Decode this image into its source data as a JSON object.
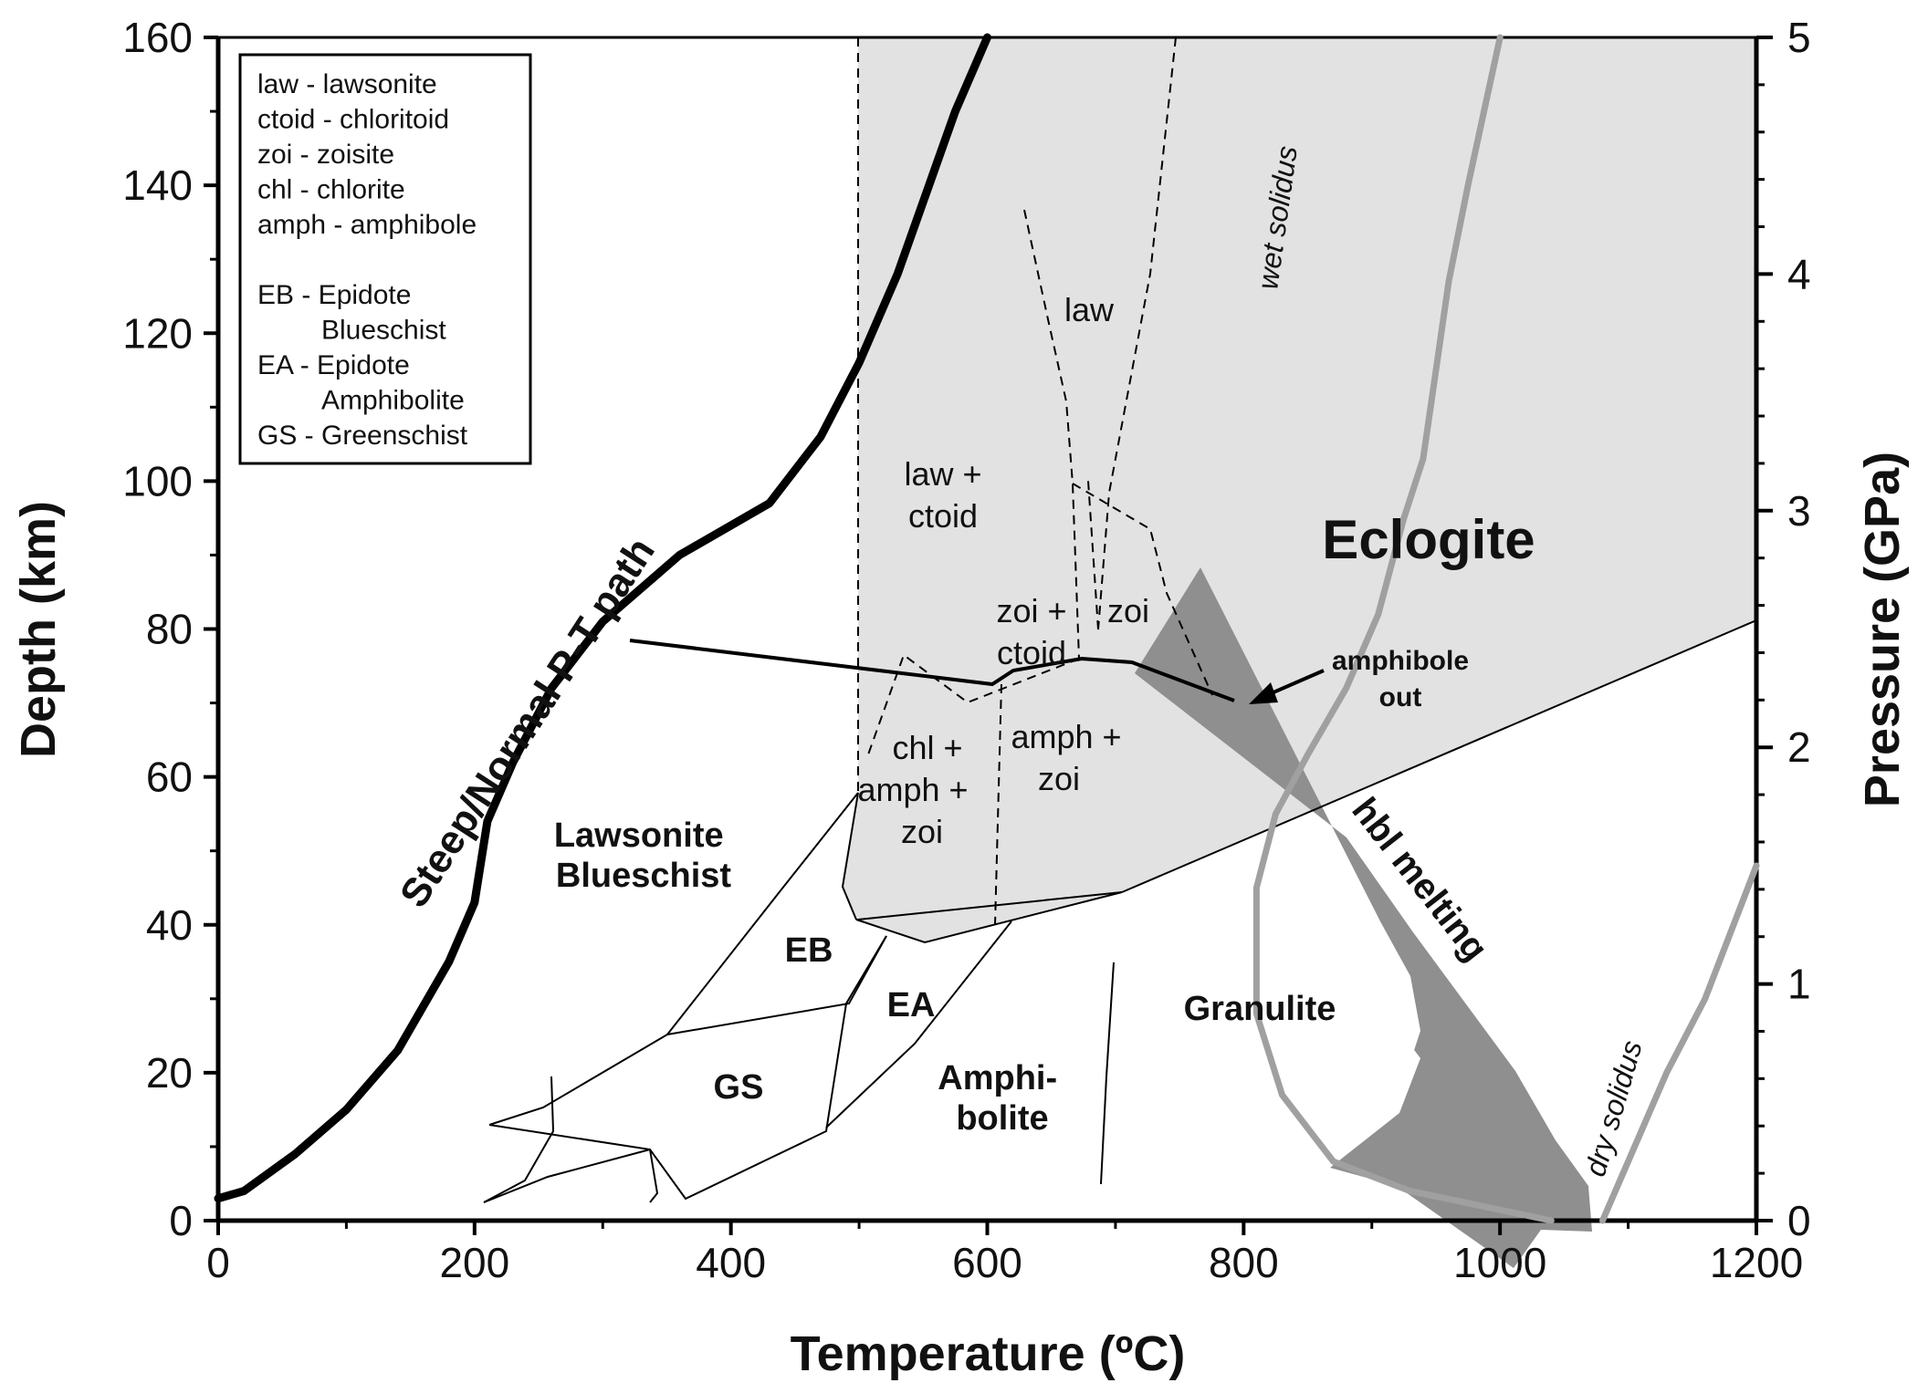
{
  "chart_data": {
    "type": "line",
    "xlabel": "Temperature (ºC)",
    "ylabel_left": "Depth (km)",
    "ylabel_right": "Pressure (GPa)",
    "xlim": [
      0,
      1200
    ],
    "ylim_depth": [
      0,
      160
    ],
    "ylim_pressure": [
      0,
      5
    ],
    "x_ticks": [
      "0",
      "200",
      "400",
      "600",
      "800",
      "1000",
      "1200"
    ],
    "depth_ticks": [
      "0",
      "20",
      "40",
      "60",
      "80",
      "100",
      "120",
      "140",
      "160"
    ],
    "pressure_ticks": [
      "0",
      "1",
      "2",
      "3",
      "4",
      "5"
    ],
    "legend": [
      "law - lawsonite",
      "ctoid - chloritoid",
      "zoi - zoisite",
      "chl - chlorite",
      "amph - amphibole",
      "",
      "EB - Epidote",
      "Blueschist",
      "EA - Epidote",
      "Amphibolite",
      "GS - Greenschist"
    ],
    "colors": {
      "eclogite_fill": "#e2e2e2",
      "hbl_band": "#8f8f8f",
      "solidus": "#a0a0a0",
      "pt_path": "#000000"
    },
    "series": [
      {
        "name": "Steep/Normal P-T path",
        "points": [
          [
            0,
            3
          ],
          [
            20,
            4
          ],
          [
            60,
            9
          ],
          [
            100,
            15
          ],
          [
            140,
            23
          ],
          [
            180,
            35
          ],
          [
            200,
            43
          ],
          [
            210,
            54
          ],
          [
            230,
            62
          ],
          [
            260,
            72
          ],
          [
            300,
            81
          ],
          [
            360,
            90
          ],
          [
            430,
            97
          ],
          [
            470,
            106
          ],
          [
            500,
            116
          ],
          [
            530,
            128
          ],
          [
            575,
            150
          ],
          [
            600,
            160
          ]
        ]
      },
      {
        "name": "wet solidus",
        "points": [
          [
            1040,
            0
          ],
          [
            930,
            4
          ],
          [
            870,
            8
          ],
          [
            830,
            17
          ],
          [
            810,
            28
          ],
          [
            810,
            45
          ],
          [
            825,
            55
          ],
          [
            850,
            63
          ],
          [
            880,
            72
          ],
          [
            905,
            82
          ],
          [
            925,
            95
          ],
          [
            940,
            103
          ],
          [
            950,
            115
          ],
          [
            960,
            127
          ],
          [
            975,
            140
          ],
          [
            990,
            152
          ],
          [
            1000,
            160
          ]
        ]
      },
      {
        "name": "dry solidus",
        "points": [
          [
            1080,
            0
          ],
          [
            1130,
            20
          ],
          [
            1160,
            30
          ],
          [
            1200,
            48
          ]
        ]
      }
    ],
    "regions": [
      {
        "name": "Eclogite"
      },
      {
        "name": "hbl melting"
      },
      {
        "name": "Lawsonite Blueschist"
      },
      {
        "name": "EB"
      },
      {
        "name": "EA"
      },
      {
        "name": "GS"
      },
      {
        "name": "Amphibolite"
      },
      {
        "name": "Granulite"
      }
    ],
    "field_labels": [
      "law",
      "law +",
      "ctoid",
      "zoi +",
      "ctoid",
      "zoi",
      "chl +",
      "amph +",
      "zoi",
      "amph +",
      "zoi"
    ],
    "annotations": [
      "amphibole",
      "out",
      "wet solidus",
      "dry solidus"
    ]
  }
}
